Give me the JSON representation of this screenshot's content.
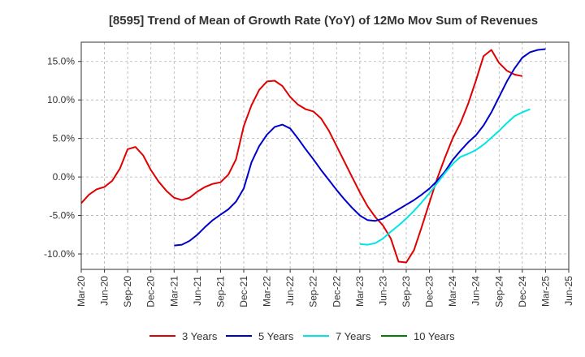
{
  "chart_data": {
    "type": "line",
    "title": "[8595]  Trend of Mean of Growth Rate (YoY) of 12Mo Mov Sum of Revenues",
    "xlabel": "",
    "ylabel": "",
    "ylim": [
      -12,
      17.5
    ],
    "yticks": [
      -10,
      -5,
      0,
      5,
      10,
      15
    ],
    "ytick_labels": [
      "-10.0%",
      "-5.0%",
      "0.0%",
      "5.0%",
      "10.0%",
      "15.0%"
    ],
    "xticks": [
      "Mar-20",
      "Jun-20",
      "Sep-20",
      "Dec-20",
      "Mar-21",
      "Jun-21",
      "Sep-21",
      "Dec-21",
      "Mar-22",
      "Jun-22",
      "Sep-22",
      "Dec-22",
      "Mar-23",
      "Jun-23",
      "Sep-23",
      "Dec-23",
      "Mar-24",
      "Jun-24",
      "Sep-24",
      "Dec-24",
      "Mar-25",
      "Jun-25"
    ],
    "grid": true,
    "legend_position": "bottom",
    "series": [
      {
        "name": "3 Years",
        "color": "#e00000",
        "start_index": 0,
        "values": [
          -3.4,
          -2.3,
          -1.6,
          -1.3,
          -0.5,
          1.1,
          3.6,
          3.9,
          2.8,
          0.9,
          -0.6,
          -1.8,
          -2.7,
          -3.0,
          -2.7,
          -1.9,
          -1.3,
          -0.9,
          -0.7,
          0.3,
          2.3,
          6.6,
          9.3,
          11.3,
          12.4,
          12.5,
          11.8,
          10.4,
          9.4,
          8.8,
          8.5,
          7.6,
          6.0,
          4.0,
          2.0,
          0.0,
          -2.0,
          -3.8,
          -5.2,
          -6.3,
          -8.0,
          -11.0,
          -11.1,
          -9.5,
          -6.5,
          -3.3,
          -0.2,
          2.5,
          5.0,
          7.0,
          9.5,
          12.5,
          15.7,
          16.5,
          14.8,
          13.8,
          13.3,
          13.1
        ]
      },
      {
        "name": "5 Years",
        "color": "#0000cc",
        "start_index": 12,
        "values": [
          -8.9,
          -8.8,
          -8.3,
          -7.5,
          -6.5,
          -5.6,
          -4.9,
          -4.2,
          -3.2,
          -1.5,
          1.9,
          4.0,
          5.5,
          6.5,
          6.8,
          6.3,
          5.0,
          3.6,
          2.3,
          0.9,
          -0.4,
          -1.7,
          -2.9,
          -4.0,
          -5.0,
          -5.6,
          -5.7,
          -5.4,
          -4.8,
          -4.2,
          -3.6,
          -3.0,
          -2.3,
          -1.5,
          -0.5,
          0.7,
          2.2,
          3.4,
          4.5,
          5.4,
          6.7,
          8.4,
          10.4,
          12.4,
          14.1,
          15.5,
          16.2,
          16.5,
          16.6
        ]
      },
      {
        "name": "7 Years",
        "color": "#00e5e5",
        "start_index": 36,
        "values": [
          -8.7,
          -8.8,
          -8.6,
          -8.0,
          -7.1,
          -6.3,
          -5.4,
          -4.4,
          -3.3,
          -2.1,
          -0.8,
          0.5,
          1.7,
          2.6,
          3.0,
          3.5,
          4.2,
          5.1,
          6.0,
          7.0,
          7.9,
          8.4,
          8.8
        ]
      },
      {
        "name": "10 Years",
        "color": "#008000",
        "start_index": 0,
        "values": []
      }
    ]
  }
}
